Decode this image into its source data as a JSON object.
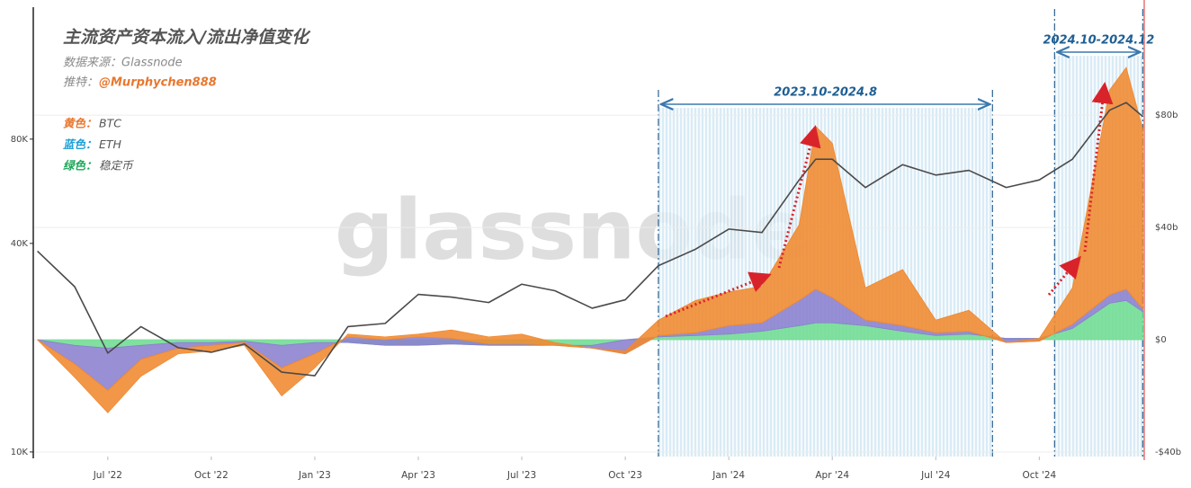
{
  "chart_data": {
    "type": "line",
    "title": "主流资产资本流入/流出净值变化",
    "source": "数据来源：Glassnode",
    "handle_label": "推特：",
    "handle": "@Murphychen888",
    "watermark": "glassnode",
    "x": [
      2022.33,
      2022.42,
      2022.5,
      2022.58,
      2022.67,
      2022.75,
      2022.83,
      2022.92,
      2023.0,
      2023.08,
      2023.17,
      2023.25,
      2023.33,
      2023.42,
      2023.5,
      2023.58,
      2023.67,
      2023.75,
      2023.83,
      2023.92,
      2024.0,
      2024.08,
      2024.17,
      2024.21,
      2024.25,
      2024.33,
      2024.42,
      2024.5,
      2024.58,
      2024.67,
      2024.75,
      2024.83,
      2024.92,
      2024.96,
      2025.0
    ],
    "xlim": [
      2022.32,
      2025.01
    ],
    "xticks": [
      {
        "value": 2022.5,
        "label": "Jul '22"
      },
      {
        "value": 2022.75,
        "label": "Oct '22"
      },
      {
        "value": 2023.0,
        "label": "Jan '23"
      },
      {
        "value": 2023.25,
        "label": "Apr '23"
      },
      {
        "value": 2023.5,
        "label": "Jul '23"
      },
      {
        "value": 2023.75,
        "label": "Oct '23"
      },
      {
        "value": 2024.0,
        "label": "Jan '24"
      },
      {
        "value": 2024.25,
        "label": "Apr '24"
      },
      {
        "value": 2024.5,
        "label": "Jul '24"
      },
      {
        "value": 2024.75,
        "label": "Oct '24"
      }
    ],
    "ylim": [
      9700,
      190000
    ],
    "yscale": "log",
    "yticks": [
      {
        "value": 10000,
        "label": "10K"
      },
      {
        "value": 40000,
        "label": "40K"
      },
      {
        "value": 80000,
        "label": "80K"
      }
    ],
    "y2lim": [
      -41.6,
      117.8
    ],
    "y2ticks": [
      {
        "value": -40,
        "label": "-$40b"
      },
      {
        "value": 0,
        "label": "$0"
      },
      {
        "value": 40,
        "label": "$40b"
      },
      {
        "value": 80,
        "label": "$80b"
      }
    ],
    "grid": true,
    "series": [
      {
        "axis": "y",
        "color": "#4a4a4a",
        "values": [
          38000,
          30000,
          19300,
          23000,
          20000,
          19400,
          20500,
          17000,
          16600,
          23000,
          23500,
          28500,
          28000,
          27000,
          30500,
          29200,
          26000,
          27500,
          34500,
          38500,
          44000,
          43000,
          61000,
          70000,
          70000,
          58000,
          67500,
          63000,
          65000,
          58000,
          61000,
          70000,
          97000,
          102000,
          93000
        ]
      },
      {
        "axis": "y2",
        "name": "稳定币",
        "legend_prefix": "绿色：",
        "legend_color": "#1fa85a",
        "color": "#6fdc92",
        "values": [
          0,
          -2,
          -3,
          -2,
          -1,
          -1,
          -0.5,
          -2,
          -1,
          -1,
          -2,
          -2,
          -1.5,
          -2,
          -2,
          -2,
          -2,
          0,
          1,
          1.5,
          2,
          3,
          5,
          6,
          6,
          5,
          3,
          1.5,
          2,
          0.5,
          0.5,
          4,
          13,
          14,
          10
        ]
      },
      {
        "axis": "y2",
        "name": "ETH",
        "legend_prefix": "蓝色：",
        "legend_color": "#1e9fd8",
        "color": "#8a7fcf",
        "values": [
          0,
          -6.6,
          -15,
          -5,
          -2,
          -1,
          -0.5,
          -8,
          -4,
          2,
          2,
          3,
          2,
          0.5,
          0.5,
          0,
          -1,
          -5,
          0.5,
          1,
          3,
          3,
          9,
          12,
          9,
          2,
          2,
          1,
          1,
          -1.5,
          -1,
          1.5,
          3,
          4,
          1
        ]
      },
      {
        "axis": "y2",
        "name": "BTC",
        "legend_prefix": "黄色：",
        "legend_color": "#e8772e",
        "color": "#f0892f",
        "values": [
          0,
          -4.8,
          -8,
          -6,
          -2,
          -2,
          -1,
          -10,
          -5,
          1,
          1,
          1,
          3,
          2.5,
          3.5,
          1,
          0,
          1,
          5.5,
          11.5,
          12,
          13,
          27,
          58,
          55,
          11.5,
          20,
          4.5,
          7.5,
          0,
          1,
          13,
          73,
          79,
          64
        ]
      }
    ],
    "annotations": [
      {
        "label": "2023.10-2024.8",
        "x": [
          2023.83,
          2024.637
        ]
      },
      {
        "label": "2024.10-2024.12",
        "x": [
          2024.787,
          2025.0
        ]
      }
    ]
  }
}
